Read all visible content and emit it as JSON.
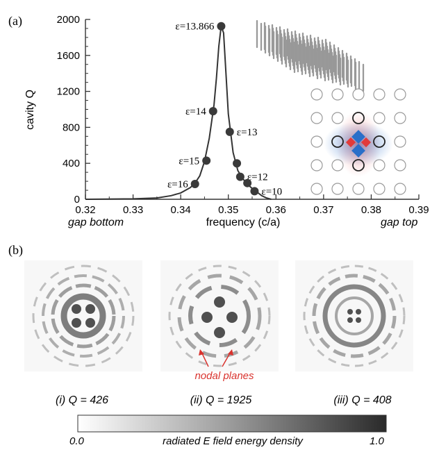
{
  "panel_a": {
    "label": "(a)",
    "x_axis": {
      "label": "frequency (c/a)",
      "left_annotation": "gap bottom",
      "right_annotation": "gap top"
    },
    "y_axis": {
      "label": "cavity Q"
    },
    "inset_lattice_3d": "rod-lattice",
    "inset_mode_pattern": "lattice-mode-icon"
  },
  "panel_b": {
    "label": "(b)",
    "field_patterns": [
      {
        "caption": "(i) Q = 426"
      },
      {
        "caption": "(ii) Q = 1925",
        "annotation": "nodal planes"
      },
      {
        "caption": "(iii) Q = 408"
      }
    ],
    "colorbar": {
      "min_label": "0.0",
      "max_label": "1.0",
      "title": "radiated E field energy density"
    }
  },
  "colors": {
    "curve": "#333333",
    "point": "#3a3a3a",
    "annotation_red": "#d9332e",
    "mode_red": "#e23a3a",
    "mode_blue": "#2a6fc9"
  },
  "chart_data": {
    "type": "line",
    "xlabel": "frequency (c/a)",
    "ylabel": "cavity Q",
    "xlim": [
      0.32,
      0.39
    ],
    "ylim": [
      0,
      2000
    ],
    "x_ticks": [
      "0.32",
      "0.33",
      "0.34",
      "0.35",
      "0.36",
      "0.37",
      "0.38",
      "0.39"
    ],
    "y_ticks": [
      "0",
      "400",
      "800",
      "1200",
      "1600",
      "2000"
    ],
    "curve": {
      "x": [
        0.32,
        0.33,
        0.335,
        0.338,
        0.34,
        0.342,
        0.343,
        0.344,
        0.345,
        0.346,
        0.347,
        0.3475,
        0.348,
        0.3485,
        0.349,
        0.3495,
        0.35,
        0.351,
        0.352,
        0.353,
        0.354,
        0.355,
        0.356,
        0.357,
        0.358,
        0.359
      ],
      "y": [
        0,
        5,
        15,
        40,
        70,
        130,
        180,
        260,
        420,
        680,
        1050,
        1350,
        1700,
        1925,
        1850,
        1400,
        950,
        520,
        320,
        230,
        170,
        120,
        80,
        40,
        15,
        0
      ]
    },
    "points": [
      {
        "x": 0.3485,
        "y": 1925,
        "label": "ε=13.866"
      },
      {
        "x": 0.3468,
        "y": 980,
        "label": "ε=14"
      },
      {
        "x": 0.3503,
        "y": 750,
        "label": "ε=13"
      },
      {
        "x": 0.3454,
        "y": 430,
        "label": "ε=15"
      },
      {
        "x": 0.3518,
        "y": 400,
        "label": ""
      },
      {
        "x": 0.3525,
        "y": 250,
        "label": "ε=12"
      },
      {
        "x": 0.354,
        "y": 180,
        "label": ""
      },
      {
        "x": 0.3555,
        "y": 90,
        "label": "ε=10"
      },
      {
        "x": 0.343,
        "y": 170,
        "label": "ε=16"
      }
    ]
  }
}
